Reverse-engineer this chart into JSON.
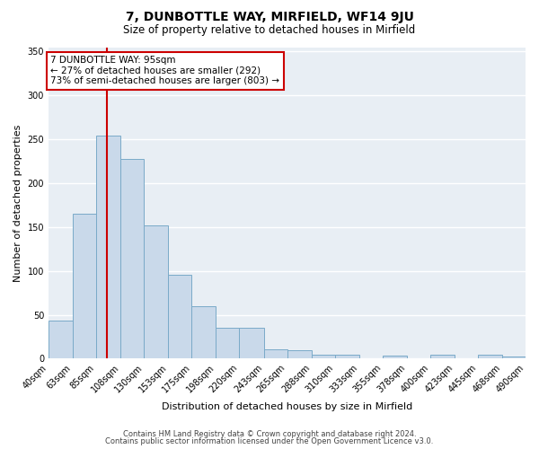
{
  "title": "7, DUNBOTTLE WAY, MIRFIELD, WF14 9JU",
  "subtitle": "Size of property relative to detached houses in Mirfield",
  "xlabel": "Distribution of detached houses by size in Mirfield",
  "ylabel": "Number of detached properties",
  "bar_left_edges": [
    40,
    63,
    85,
    108,
    130,
    153,
    175,
    198,
    220,
    243,
    265,
    288,
    310,
    333,
    355,
    378,
    400,
    423,
    445,
    468
  ],
  "bar_widths": [
    23,
    22,
    23,
    22,
    23,
    22,
    23,
    22,
    23,
    22,
    23,
    22,
    23,
    22,
    23,
    22,
    23,
    22,
    23,
    22
  ],
  "bar_heights": [
    43,
    165,
    254,
    228,
    152,
    96,
    60,
    35,
    35,
    11,
    10,
    5,
    4,
    0,
    3,
    0,
    4,
    0,
    5,
    2
  ],
  "bar_color": "#c9d9ea",
  "bar_edge_color": "#7aaac8",
  "tick_labels": [
    "40sqm",
    "63sqm",
    "85sqm",
    "108sqm",
    "130sqm",
    "153sqm",
    "175sqm",
    "198sqm",
    "220sqm",
    "243sqm",
    "265sqm",
    "288sqm",
    "310sqm",
    "333sqm",
    "355sqm",
    "378sqm",
    "400sqm",
    "423sqm",
    "445sqm",
    "468sqm",
    "490sqm"
  ],
  "vline_x": 95,
  "vline_color": "#cc0000",
  "annotation_title": "7 DUNBOTTLE WAY: 95sqm",
  "annotation_line1": "← 27% of detached houses are smaller (292)",
  "annotation_line2": "73% of semi-detached houses are larger (803) →",
  "annotation_box_color": "#cc0000",
  "ylim": [
    0,
    355
  ],
  "yticks": [
    0,
    50,
    100,
    150,
    200,
    250,
    300,
    350
  ],
  "footer1": "Contains HM Land Registry data © Crown copyright and database right 2024.",
  "footer2": "Contains public sector information licensed under the Open Government Licence v3.0.",
  "figure_bg_color": "#ffffff",
  "plot_bg_color": "#e8eef4",
  "grid_color": "#ffffff",
  "title_fontsize": 10,
  "subtitle_fontsize": 8.5,
  "axis_label_fontsize": 8,
  "tick_fontsize": 7,
  "footer_fontsize": 6,
  "annotation_fontsize": 7.5
}
